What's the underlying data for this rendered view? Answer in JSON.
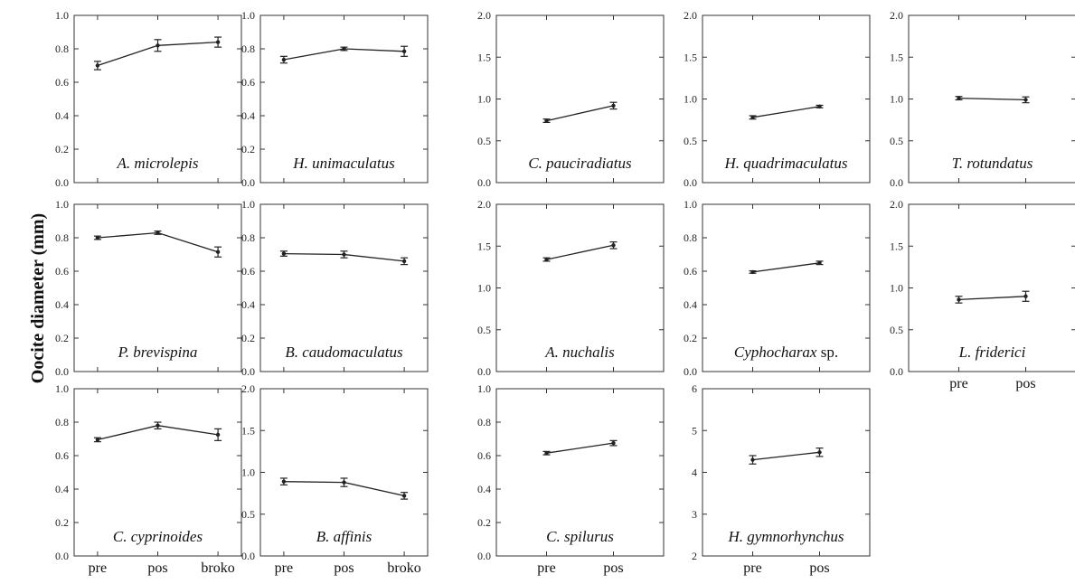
{
  "ylabel": "Oocite diameter (mm)",
  "chart_data": [
    {
      "type": "line",
      "species": "A. microlepis",
      "italic": "A. microlepis",
      "suffix": "",
      "categories": [
        "pre",
        "pos",
        "broko"
      ],
      "show_xticks": true,
      "values": [
        0.7,
        0.82,
        0.84
      ],
      "errors": [
        0.025,
        0.035,
        0.03
      ],
      "ylim": [
        0,
        1.0
      ],
      "yticks": [
        "0.0",
        "0.2",
        "0.4",
        "0.6",
        "0.8",
        "1.0"
      ]
    },
    {
      "type": "line",
      "species": "H. unimaculatus",
      "italic": "H. unimaculatus",
      "suffix": "",
      "categories": [
        "pre",
        "pos",
        "broko"
      ],
      "show_xticks": true,
      "values": [
        0.735,
        0.8,
        0.785
      ],
      "errors": [
        0.02,
        0.01,
        0.03
      ],
      "ylim": [
        0,
        1.0
      ],
      "yticks": [
        "0.0",
        "0.2",
        "0.4",
        "0.6",
        "0.8",
        "1.0"
      ]
    },
    {
      "type": "line",
      "species": "C. pauciradiatus",
      "italic": "C. pauciradiatus",
      "suffix": "",
      "categories": [
        "pre",
        "pos"
      ],
      "show_xticks": true,
      "values": [
        0.74,
        0.92
      ],
      "errors": [
        0.02,
        0.04
      ],
      "ylim": [
        0,
        2.0
      ],
      "yticks": [
        "0.0",
        "0.5",
        "1.0",
        "1.5",
        "2.0"
      ]
    },
    {
      "type": "line",
      "species": "H. quadrimaculatus",
      "italic": "H. quadrimaculatus",
      "suffix": "",
      "categories": [
        "pre",
        "pos"
      ],
      "show_xticks": true,
      "values": [
        0.78,
        0.91
      ],
      "errors": [
        0.02,
        0.015
      ],
      "ylim": [
        0,
        2.0
      ],
      "yticks": [
        "0.0",
        "0.5",
        "1.0",
        "1.5",
        "2.0"
      ]
    },
    {
      "type": "line",
      "species": "T. rotundatus",
      "italic": "T. rotundatus",
      "suffix": "",
      "categories": [
        "pre",
        "pos"
      ],
      "show_xticks": true,
      "values": [
        1.01,
        0.99
      ],
      "errors": [
        0.02,
        0.035
      ],
      "ylim": [
        0,
        2.0
      ],
      "yticks": [
        "0.0",
        "0.5",
        "1.0",
        "1.5",
        "2.0"
      ]
    },
    {
      "type": "line",
      "species": "P. brevispina",
      "italic": "P. brevispina",
      "suffix": "",
      "categories": [
        "pre",
        "pos",
        "broko"
      ],
      "show_xticks": true,
      "values": [
        0.8,
        0.83,
        0.715
      ],
      "errors": [
        0.01,
        0.01,
        0.03
      ],
      "ylim": [
        0,
        1.0
      ],
      "yticks": [
        "0.0",
        "0.2",
        "0.4",
        "0.6",
        "0.8",
        "1.0"
      ]
    },
    {
      "type": "line",
      "species": "B. caudomaculatus",
      "italic": "B. caudomaculatus",
      "suffix": "",
      "categories": [
        "pre",
        "pos",
        "broko"
      ],
      "show_xticks": true,
      "values": [
        0.705,
        0.7,
        0.66
      ],
      "errors": [
        0.015,
        0.02,
        0.02
      ],
      "ylim": [
        0,
        1.0
      ],
      "yticks": [
        "0.0",
        "0.2",
        "0.4",
        "0.6",
        "0.8",
        "1.0"
      ]
    },
    {
      "type": "line",
      "species": "A. nuchalis",
      "italic": "A. nuchalis",
      "suffix": "",
      "categories": [
        "pre",
        "pos"
      ],
      "show_xticks": true,
      "values": [
        1.34,
        1.51
      ],
      "errors": [
        0.02,
        0.04
      ],
      "ylim": [
        0,
        2.0
      ],
      "yticks": [
        "0.0",
        "0.5",
        "1.0",
        "1.5",
        "2.0"
      ]
    },
    {
      "type": "line",
      "species": "Cyphocharax sp.",
      "italic": "Cyphocharax",
      "suffix": " sp.",
      "categories": [
        "pre",
        "pos"
      ],
      "show_xticks": true,
      "values": [
        0.595,
        0.65
      ],
      "errors": [
        0.007,
        0.01
      ],
      "ylim": [
        0,
        1.0
      ],
      "yticks": [
        "0.0",
        "0.2",
        "0.4",
        "0.6",
        "0.8",
        "1.0"
      ]
    },
    {
      "type": "line",
      "species": "L. friderici",
      "italic": "L. friderici",
      "suffix": "",
      "categories": [
        "pre",
        "pos"
      ],
      "show_xticks": true,
      "values": [
        0.86,
        0.9
      ],
      "errors": [
        0.04,
        0.06
      ],
      "ylim": [
        0,
        2.0
      ],
      "yticks": [
        "0.0",
        "0.5",
        "1.0",
        "1.5",
        "2.0"
      ]
    },
    {
      "type": "line",
      "species": "C. cyprinoides",
      "italic": "C. cyprinoides",
      "suffix": "",
      "categories": [
        "pre",
        "pos",
        "broko"
      ],
      "show_xticks": true,
      "values": [
        0.695,
        0.78,
        0.725
      ],
      "errors": [
        0.012,
        0.02,
        0.035
      ],
      "ylim": [
        0,
        1.0
      ],
      "yticks": [
        "0.0",
        "0.2",
        "0.4",
        "0.6",
        "0.8",
        "1.0"
      ]
    },
    {
      "type": "line",
      "species": "B. affinis",
      "italic": "B. affinis",
      "suffix": "",
      "categories": [
        "pre",
        "pos",
        "broko"
      ],
      "show_xticks": true,
      "values": [
        0.89,
        0.88,
        0.72
      ],
      "errors": [
        0.04,
        0.05,
        0.04
      ],
      "ylim": [
        0,
        2.0
      ],
      "yticks": [
        "0.0",
        "0.5",
        "1.0",
        "1.5",
        "2.0"
      ]
    },
    {
      "type": "line",
      "species": "C. spilurus",
      "italic": "C. spilurus",
      "suffix": "",
      "categories": [
        "pre",
        "pos"
      ],
      "show_xticks": true,
      "values": [
        0.615,
        0.675
      ],
      "errors": [
        0.01,
        0.015
      ],
      "ylim": [
        0,
        1.0
      ],
      "yticks": [
        "0.0",
        "0.2",
        "0.4",
        "0.6",
        "0.8",
        "1.0"
      ]
    },
    {
      "type": "line",
      "species": "H. gymnorhynchus",
      "italic": "H. gymnorhynchus",
      "suffix": "",
      "categories": [
        "pre",
        "pos"
      ],
      "show_xticks": true,
      "values": [
        4.3,
        4.48
      ],
      "errors": [
        0.1,
        0.1
      ],
      "ylim": [
        2,
        6
      ],
      "yticks": [
        "2",
        "3",
        "4",
        "5",
        "6"
      ]
    }
  ]
}
